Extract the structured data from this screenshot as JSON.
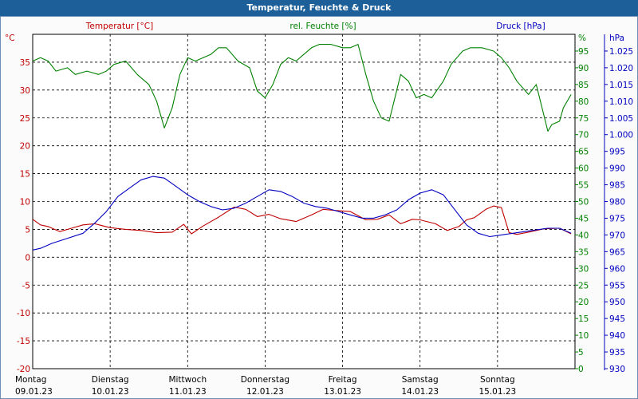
{
  "window": {
    "title": "Temperatur, Feuchte & Druck"
  },
  "chart_data": {
    "type": "line",
    "title": "Temperatur, Feuchte & Druck",
    "x_unit": "days since 09.01.23 00:00",
    "xlim": [
      0,
      7
    ],
    "days": [
      {
        "day": "Montag",
        "date": "09.01.23"
      },
      {
        "day": "Dienstag",
        "date": "10.01.23"
      },
      {
        "day": "Mittwoch",
        "date": "11.01.23"
      },
      {
        "day": "Donnerstag",
        "date": "12.01.23"
      },
      {
        "day": "Freitag",
        "date": "13.01.23"
      },
      {
        "day": "Samstag",
        "date": "14.01.23"
      },
      {
        "day": "Sonntag",
        "date": "15.01.23"
      }
    ],
    "grid": true,
    "axes": {
      "left": {
        "label": "Temperatur [°C]",
        "unit": "°C",
        "ylim": [
          -20,
          40
        ],
        "color": "#c00000",
        "ticks": [
          "-20",
          "-15",
          "-10",
          "-5",
          "0",
          "5",
          "10",
          "15",
          "20",
          "25",
          "30",
          "35"
        ]
      },
      "right1": {
        "label": "rel. Feuchte [%]",
        "unit": "%",
        "ylim": [
          0,
          100
        ],
        "color": "#008000",
        "ticks": [
          "0",
          "5",
          "10",
          "15",
          "20",
          "25",
          "30",
          "35",
          "40",
          "45",
          "50",
          "55",
          "60",
          "65",
          "70",
          "75",
          "80",
          "85",
          "90",
          "95"
        ]
      },
      "right2": {
        "label": "Druck [hPa]",
        "unit": "hPa",
        "ylim": [
          930,
          1030
        ],
        "color": "#0000c0",
        "ticks": [
          "930",
          "935",
          "940",
          "945",
          "950",
          "955",
          "960",
          "965",
          "970",
          "975",
          "980",
          "985",
          "990",
          "995",
          "1.000",
          "1.005",
          "1.010",
          "1.015",
          "1.020",
          "1.025"
        ]
      }
    },
    "series": [
      {
        "name": "Temperatur",
        "axis": "left",
        "color": "#c00000",
        "x": [
          0,
          0.1,
          0.2,
          0.35,
          0.5,
          0.65,
          0.8,
          1.0,
          1.2,
          1.4,
          1.6,
          1.8,
          1.95,
          2.05,
          2.2,
          2.4,
          2.6,
          2.75,
          2.9,
          3.05,
          3.2,
          3.4,
          3.6,
          3.75,
          3.9,
          4.1,
          4.3,
          4.45,
          4.6,
          4.75,
          4.9,
          5.0,
          5.2,
          5.35,
          5.5,
          5.6,
          5.7,
          5.85,
          5.95,
          6.05,
          6.15,
          6.25,
          6.4,
          6.6,
          6.8,
          6.95
        ],
        "values": [
          6.8,
          5.8,
          5.5,
          4.6,
          5.2,
          5.8,
          6.0,
          5.3,
          5.0,
          4.8,
          4.4,
          4.5,
          5.9,
          4.2,
          5.6,
          7.2,
          9.0,
          8.6,
          7.3,
          7.7,
          6.9,
          6.4,
          7.6,
          8.6,
          8.4,
          8.2,
          6.7,
          6.8,
          7.6,
          6.0,
          6.8,
          6.7,
          6.0,
          4.8,
          5.5,
          6.7,
          7.1,
          8.6,
          9.2,
          8.9,
          4.4,
          4.1,
          4.5,
          5.1,
          5.2,
          4.2
        ]
      },
      {
        "name": "rel. Feuchte",
        "axis": "right1",
        "color": "#008000",
        "x": [
          0,
          0.1,
          0.2,
          0.3,
          0.45,
          0.55,
          0.7,
          0.85,
          0.95,
          1.05,
          1.2,
          1.35,
          1.5,
          1.6,
          1.7,
          1.8,
          1.9,
          2.0,
          2.1,
          2.3,
          2.4,
          2.5,
          2.65,
          2.8,
          2.9,
          3.0,
          3.1,
          3.2,
          3.3,
          3.4,
          3.5,
          3.6,
          3.7,
          3.85,
          4.0,
          4.1,
          4.2,
          4.3,
          4.4,
          4.5,
          4.6,
          4.75,
          4.85,
          4.95,
          5.05,
          5.15,
          5.3,
          5.4,
          5.55,
          5.65,
          5.8,
          5.95,
          6.05,
          6.15,
          6.25,
          6.4,
          6.5,
          6.65,
          6.7,
          6.8,
          6.85,
          6.95
        ],
        "values": [
          92,
          93,
          92,
          89,
          90,
          88,
          89,
          88,
          89,
          91,
          92,
          88,
          85,
          80,
          72,
          78,
          88,
          93,
          92,
          94,
          96,
          96,
          92,
          90,
          83,
          81,
          85,
          91,
          93,
          92,
          94,
          96,
          97,
          97,
          96,
          96,
          97,
          88,
          80,
          75,
          74,
          88,
          86,
          81,
          82,
          81,
          86,
          91,
          95,
          96,
          96,
          95,
          93,
          90,
          86,
          82,
          85,
          71,
          73,
          74,
          78,
          82
        ]
      },
      {
        "name": "Druck",
        "axis": "right2",
        "color": "#0000c0",
        "x": [
          0,
          0.1,
          0.25,
          0.45,
          0.65,
          0.8,
          0.95,
          1.1,
          1.25,
          1.4,
          1.55,
          1.7,
          1.85,
          2.0,
          2.15,
          2.3,
          2.45,
          2.6,
          2.75,
          2.9,
          3.05,
          3.2,
          3.35,
          3.5,
          3.65,
          3.8,
          3.95,
          4.1,
          4.25,
          4.4,
          4.55,
          4.7,
          4.85,
          5.0,
          5.15,
          5.3,
          5.4,
          5.5,
          5.6,
          5.75,
          5.9,
          6.05,
          6.2,
          6.35,
          6.5,
          6.65,
          6.8,
          6.95
        ],
        "values": [
          965.5,
          966,
          967.5,
          969,
          970.5,
          973.5,
          977,
          981.5,
          984,
          986.5,
          987.5,
          987,
          984.5,
          982,
          980,
          978.5,
          977.5,
          978,
          979.5,
          981.5,
          983.5,
          983,
          981.5,
          979.5,
          978.5,
          978,
          977,
          976,
          975,
          975,
          976,
          977.5,
          980.5,
          982.5,
          983.5,
          982,
          979,
          976,
          973,
          970.5,
          969.5,
          970,
          970.5,
          971,
          971.5,
          972,
          972,
          970.5
        ]
      }
    ]
  }
}
